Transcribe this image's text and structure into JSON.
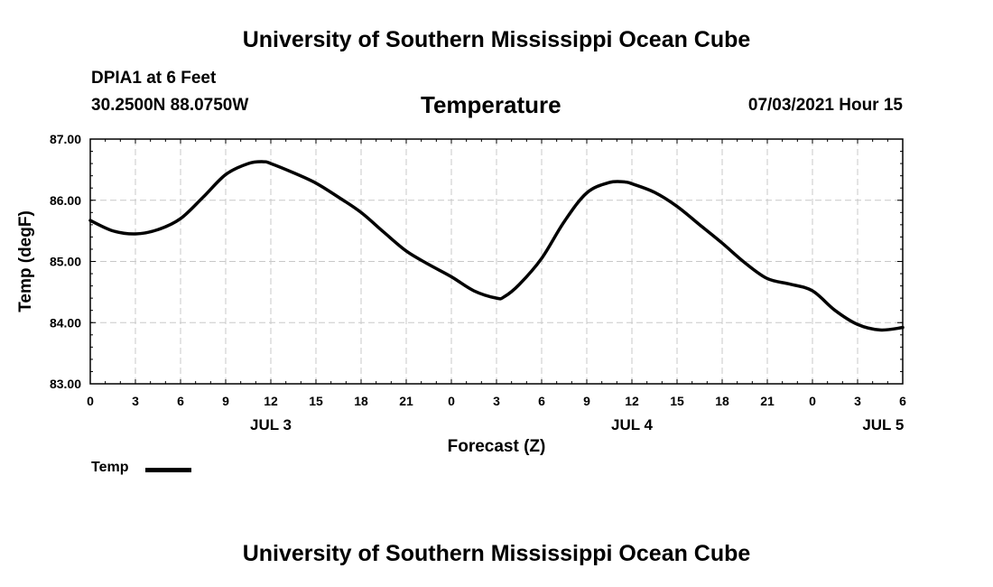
{
  "header": {
    "title": "University of Southern Mississippi Ocean Cube",
    "station": "DPIA1 at 6 Feet",
    "coords": "30.2500N  88.0750W",
    "variable": "Temperature",
    "datetime": "07/03/2021 Hour 15"
  },
  "footer": {
    "title": "University of Southern Mississippi Ocean Cube"
  },
  "legend": {
    "label": "Temp"
  },
  "chart_data": {
    "type": "line",
    "title": "Temperature",
    "xlabel": "Forecast (Z)",
    "ylabel": "Temp (degF)",
    "xlim": [
      0,
      54
    ],
    "ylim": [
      83,
      87
    ],
    "grid": true,
    "xticks": [
      0,
      3,
      6,
      9,
      12,
      15,
      18,
      21,
      24,
      27,
      30,
      33,
      36,
      39,
      42,
      45,
      48,
      51,
      54
    ],
    "xtick_labels": [
      "0",
      "3",
      "6",
      "9",
      "12",
      "15",
      "18",
      "21",
      "0",
      "3",
      "6",
      "9",
      "12",
      "15",
      "18",
      "21",
      "0",
      "3",
      "6"
    ],
    "yticks": [
      83,
      84,
      85,
      86,
      87
    ],
    "ytick_labels": [
      "83.00",
      "84.00",
      "85.00",
      "86.00",
      "87.00"
    ],
    "day_labels": [
      {
        "label": "JUL 3",
        "x": 12
      },
      {
        "label": "JUL 4",
        "x": 36
      },
      {
        "label": "JUL 5",
        "x": 52.7
      }
    ],
    "series": [
      {
        "name": "Temp",
        "color": "#000000",
        "x": [
          0,
          1.5,
          3,
          4.5,
          6,
          7.5,
          9,
          10.5,
          11.5,
          12,
          13.5,
          15,
          16.5,
          18,
          19.5,
          21,
          22.5,
          24,
          25.5,
          27,
          27.5,
          28.5,
          30,
          31.5,
          33,
          34.5,
          35.5,
          36,
          37.5,
          39,
          40.5,
          42,
          43.5,
          45,
          46.5,
          48,
          49.5,
          51,
          52.5,
          54
        ],
        "y": [
          85.67,
          85.5,
          85.45,
          85.52,
          85.7,
          86.05,
          86.42,
          86.6,
          86.63,
          86.6,
          86.45,
          86.28,
          86.05,
          85.8,
          85.48,
          85.17,
          84.95,
          84.75,
          84.52,
          84.4,
          84.42,
          84.62,
          85.05,
          85.65,
          86.12,
          86.29,
          86.3,
          86.27,
          86.13,
          85.9,
          85.6,
          85.3,
          84.98,
          84.72,
          84.63,
          84.52,
          84.2,
          83.97,
          83.88,
          83.92
        ]
      }
    ]
  }
}
